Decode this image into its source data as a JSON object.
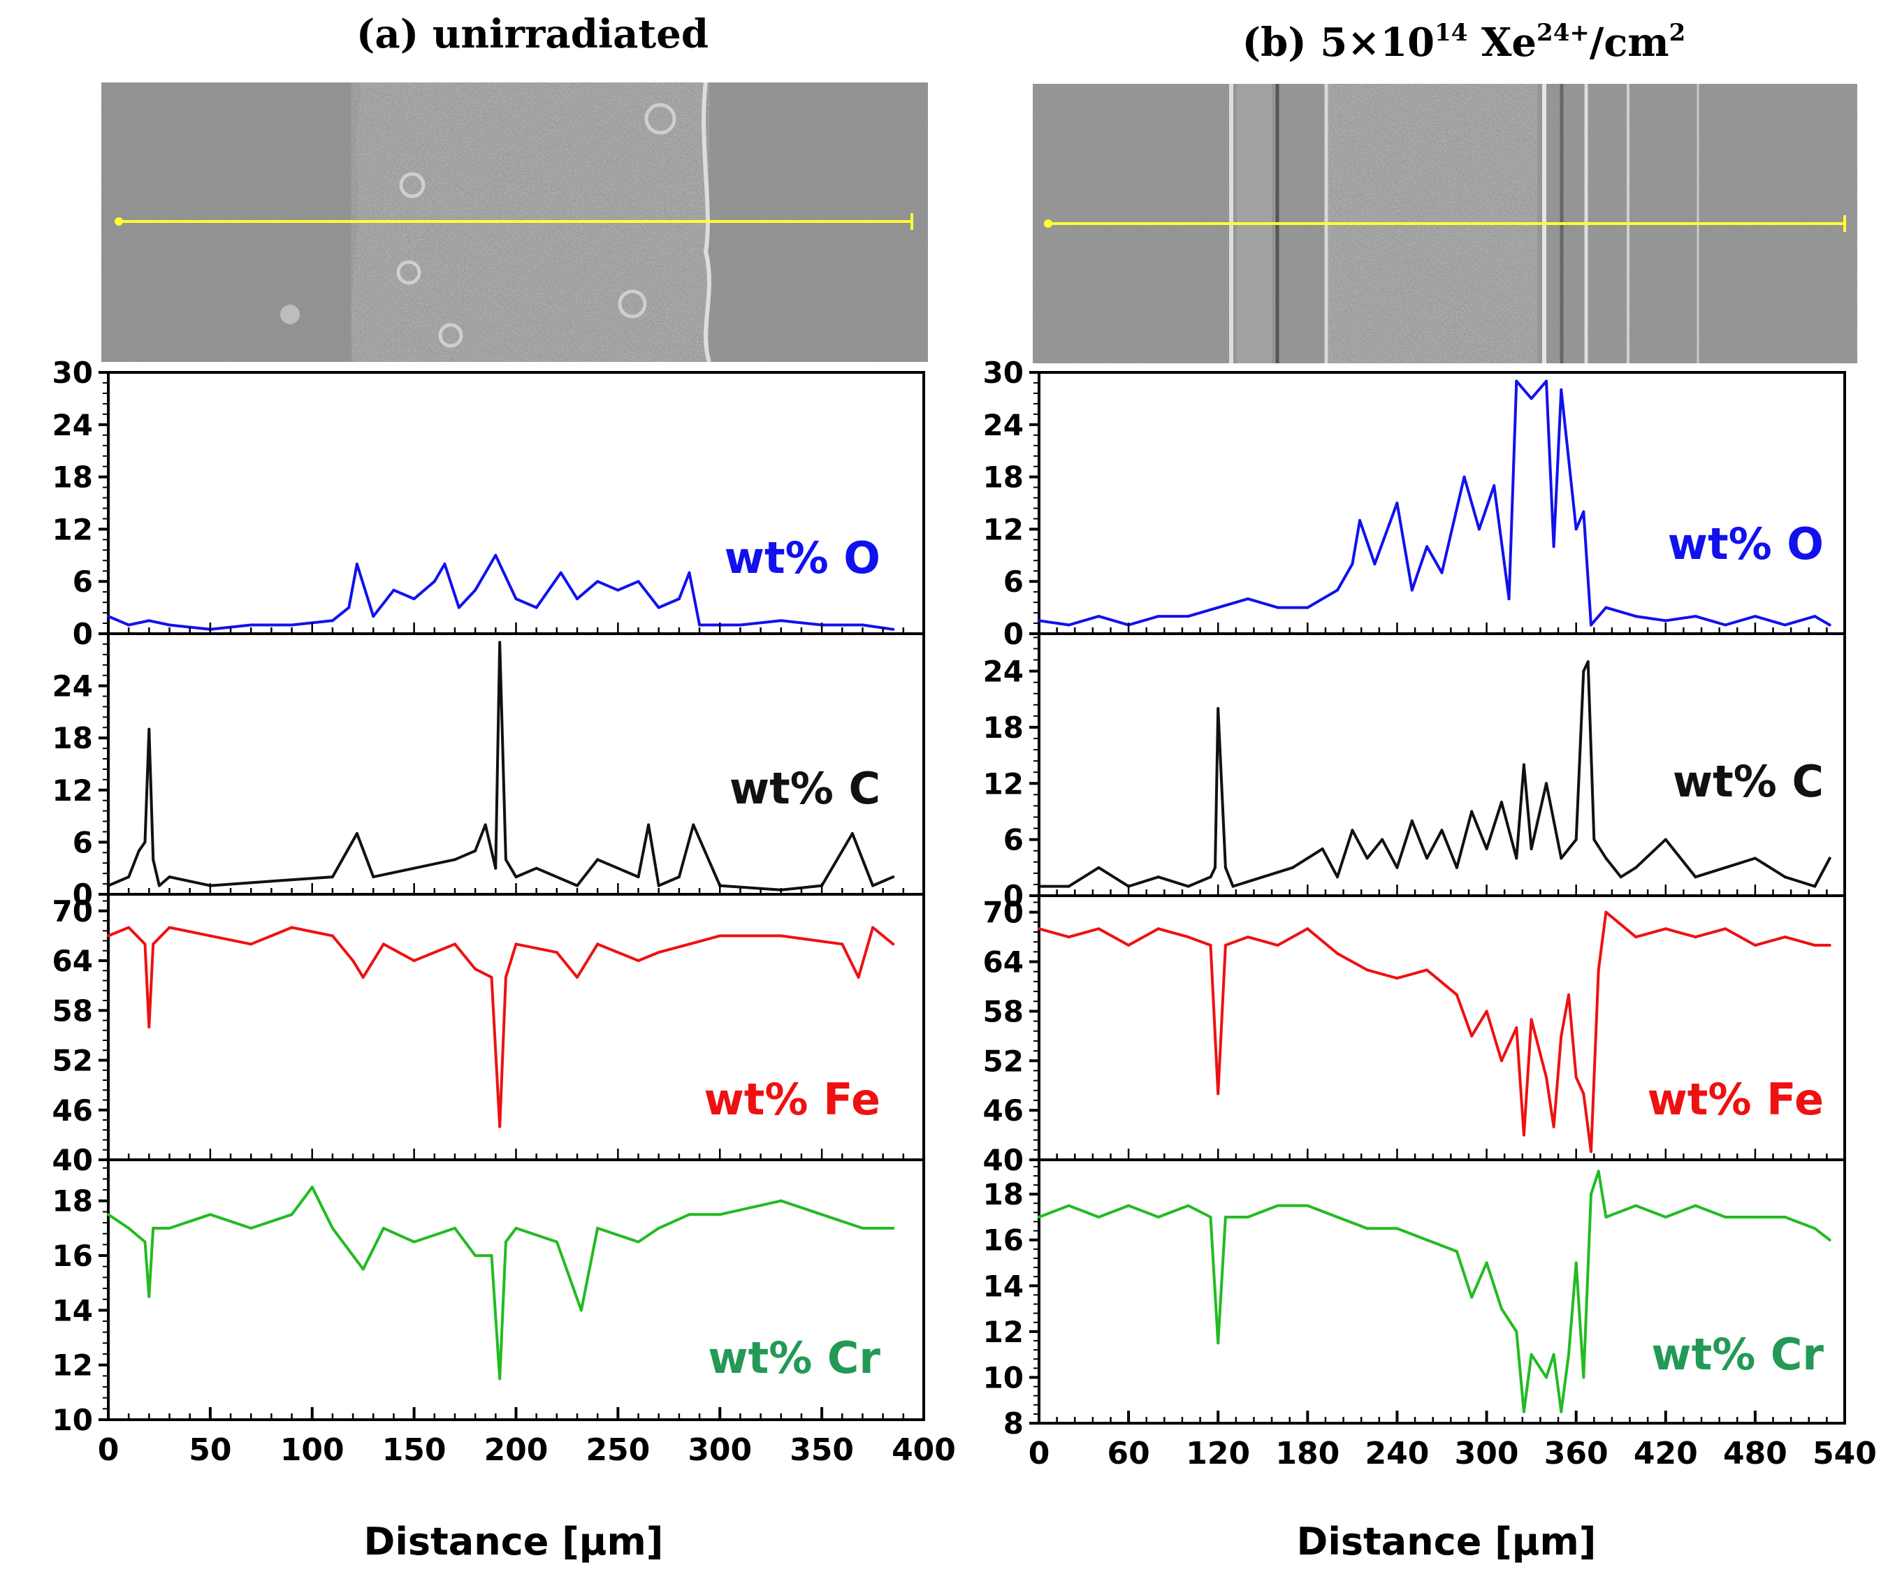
{
  "figure": {
    "panels": [
      {
        "id": "a",
        "title": "(a) unirradiated",
        "xlabel": "Distance  [µm]",
        "xticks": [
          "0",
          "50",
          "100",
          "150",
          "200",
          "250",
          "300",
          "350",
          "400"
        ],
        "xlim": [
          0,
          400
        ],
        "sem_caption": "SEM image with yellow scan line"
      },
      {
        "id": "b",
        "title_main": "(b) 5×10",
        "title_exp": "14",
        "title_ion": " Xe",
        "title_charge": "24+",
        "title_unit": "/cm",
        "title_unit_exp": "2",
        "xlabel": "Distance  [µm]",
        "xticks": [
          "0",
          "60",
          "120",
          "180",
          "240",
          "300",
          "360",
          "420",
          "480",
          "540"
        ],
        "xlim": [
          0,
          540
        ],
        "sem_caption": "SEM image with yellow scan line"
      }
    ]
  },
  "chart_data": [
    {
      "type": "line",
      "panel": "a",
      "title": "(a) unirradiated",
      "xlabel": "Distance  [µm]",
      "xlim": [
        0,
        400
      ],
      "series": [
        {
          "name": "wt% O",
          "color": "#1111ee",
          "ylim": [
            0,
            30
          ],
          "yticks": [
            "0",
            "6",
            "12",
            "18",
            "24",
            "30"
          ],
          "x": [
            0,
            10,
            20,
            30,
            50,
            70,
            90,
            110,
            118,
            122,
            130,
            140,
            150,
            160,
            165,
            172,
            180,
            190,
            200,
            210,
            222,
            230,
            240,
            250,
            260,
            270,
            280,
            285,
            290,
            310,
            330,
            350,
            370,
            385
          ],
          "y": [
            2,
            1,
            1.5,
            1,
            0.5,
            1,
            1,
            1.5,
            3,
            8,
            2,
            5,
            4,
            6,
            8,
            3,
            5,
            9,
            4,
            3,
            7,
            4,
            6,
            5,
            6,
            3,
            4,
            7,
            1,
            1,
            1.5,
            1,
            1,
            0.5
          ]
        },
        {
          "name": "wt% C",
          "color": "#111111",
          "ylim": [
            0,
            30
          ],
          "yticks": [
            "0",
            "6",
            "12",
            "18",
            "24"
          ],
          "x": [
            0,
            10,
            15,
            18,
            20,
            22,
            25,
            30,
            50,
            80,
            110,
            122,
            130,
            150,
            170,
            180,
            185,
            190,
            192,
            195,
            200,
            210,
            230,
            240,
            260,
            265,
            270,
            280,
            287,
            300,
            330,
            350,
            365,
            375,
            385
          ],
          "y": [
            1,
            2,
            5,
            6,
            19,
            4,
            1,
            2,
            1,
            1.5,
            2,
            7,
            2,
            3,
            4,
            5,
            8,
            3,
            29,
            4,
            2,
            3,
            1,
            4,
            2,
            8,
            1,
            2,
            8,
            1,
            0.5,
            1,
            7,
            1,
            2
          ]
        },
        {
          "name": "wt% Fe",
          "color": "#ee1111",
          "ylim": [
            40,
            72
          ],
          "yticks": [
            "40",
            "46",
            "52",
            "58",
            "64",
            "70"
          ],
          "x": [
            0,
            10,
            18,
            20,
            22,
            30,
            50,
            70,
            90,
            110,
            120,
            125,
            135,
            150,
            170,
            180,
            188,
            192,
            195,
            200,
            220,
            230,
            240,
            260,
            270,
            285,
            300,
            330,
            360,
            368,
            375,
            385
          ],
          "y": [
            67,
            68,
            66,
            56,
            66,
            68,
            67,
            66,
            68,
            67,
            64,
            62,
            66,
            64,
            66,
            63,
            62,
            44,
            62,
            66,
            65,
            62,
            66,
            64,
            65,
            66,
            67,
            67,
            66,
            62,
            68,
            66
          ]
        },
        {
          "name": "wt% Cr",
          "color": "#22bb22",
          "ylim": [
            10,
            19.5
          ],
          "yticks": [
            "10",
            "12",
            "14",
            "16",
            "18"
          ],
          "x": [
            0,
            10,
            18,
            20,
            22,
            30,
            50,
            70,
            90,
            100,
            110,
            125,
            135,
            150,
            170,
            180,
            188,
            192,
            195,
            200,
            220,
            232,
            240,
            260,
            270,
            285,
            300,
            330,
            350,
            370,
            385
          ],
          "y": [
            17.5,
            17,
            16.5,
            14.5,
            17,
            17,
            17.5,
            17,
            17.5,
            18.5,
            17,
            15.5,
            17,
            16.5,
            17,
            16,
            16,
            11.5,
            16.5,
            17,
            16.5,
            14,
            17,
            16.5,
            17,
            17.5,
            17.5,
            18,
            17.5,
            17,
            17
          ]
        }
      ]
    },
    {
      "type": "line",
      "panel": "b",
      "title": "(b) 5×10^14 Xe^24+/cm^2",
      "xlabel": "Distance  [µm]",
      "xlim": [
        0,
        540
      ],
      "series": [
        {
          "name": "wt% O",
          "color": "#1111ee",
          "ylim": [
            0,
            30
          ],
          "yticks": [
            "0",
            "6",
            "12",
            "18",
            "24",
            "30"
          ],
          "x": [
            0,
            20,
            40,
            60,
            80,
            100,
            120,
            140,
            160,
            180,
            200,
            210,
            215,
            225,
            240,
            250,
            260,
            270,
            285,
            295,
            305,
            315,
            320,
            330,
            340,
            345,
            350,
            360,
            365,
            370,
            380,
            400,
            420,
            440,
            460,
            480,
            500,
            520,
            530
          ],
          "y": [
            1.5,
            1,
            2,
            1,
            2,
            2,
            3,
            4,
            3,
            3,
            5,
            8,
            13,
            8,
            15,
            5,
            10,
            7,
            18,
            12,
            17,
            4,
            29,
            27,
            29,
            10,
            28,
            12,
            14,
            1,
            3,
            2,
            1.5,
            2,
            1,
            2,
            1,
            2,
            1
          ]
        },
        {
          "name": "wt% C",
          "color": "#111111",
          "ylim": [
            0,
            28
          ],
          "yticks": [
            "0",
            "6",
            "12",
            "18",
            "24"
          ],
          "x": [
            0,
            20,
            40,
            60,
            80,
            100,
            115,
            118,
            120,
            125,
            130,
            150,
            170,
            190,
            200,
            210,
            220,
            230,
            240,
            250,
            260,
            270,
            280,
            290,
            300,
            310,
            320,
            325,
            330,
            340,
            350,
            360,
            365,
            368,
            372,
            380,
            390,
            400,
            420,
            440,
            460,
            480,
            500,
            520,
            530
          ],
          "y": [
            1,
            1,
            3,
            1,
            2,
            1,
            2,
            3,
            20,
            3,
            1,
            2,
            3,
            5,
            2,
            7,
            4,
            6,
            3,
            8,
            4,
            7,
            3,
            9,
            5,
            10,
            4,
            14,
            5,
            12,
            4,
            6,
            24,
            25,
            6,
            4,
            2,
            3,
            6,
            2,
            3,
            4,
            2,
            1,
            4
          ]
        },
        {
          "name": "wt% Fe",
          "color": "#ee1111",
          "ylim": [
            40,
            72
          ],
          "yticks": [
            "40",
            "46",
            "52",
            "58",
            "64",
            "70"
          ],
          "x": [
            0,
            20,
            40,
            60,
            80,
            100,
            115,
            120,
            125,
            140,
            160,
            180,
            200,
            220,
            240,
            260,
            280,
            290,
            300,
            310,
            320,
            325,
            330,
            340,
            345,
            350,
            355,
            360,
            365,
            370,
            375,
            380,
            400,
            420,
            440,
            460,
            480,
            500,
            520,
            530
          ],
          "y": [
            68,
            67,
            68,
            66,
            68,
            67,
            66,
            48,
            66,
            67,
            66,
            68,
            65,
            63,
            62,
            63,
            60,
            55,
            58,
            52,
            56,
            43,
            57,
            50,
            44,
            55,
            60,
            50,
            48,
            41,
            63,
            70,
            67,
            68,
            67,
            68,
            66,
            67,
            66,
            66
          ]
        },
        {
          "name": "wt% Cr",
          "color": "#22bb22",
          "ylim": [
            8,
            19.5
          ],
          "yticks": [
            "8",
            "10",
            "12",
            "14",
            "16",
            "18"
          ],
          "x": [
            0,
            20,
            40,
            60,
            80,
            100,
            115,
            120,
            125,
            140,
            160,
            180,
            200,
            220,
            240,
            260,
            280,
            290,
            300,
            310,
            320,
            325,
            330,
            340,
            345,
            350,
            355,
            360,
            365,
            370,
            375,
            380,
            400,
            420,
            440,
            460,
            480,
            500,
            520,
            530
          ],
          "y": [
            17,
            17.5,
            17,
            17.5,
            17,
            17.5,
            17,
            11.5,
            17,
            17,
            17.5,
            17.5,
            17,
            16.5,
            16.5,
            16,
            15.5,
            13.5,
            15,
            13,
            12,
            8.5,
            11,
            10,
            11,
            8.5,
            11,
            15,
            10,
            18,
            19,
            17,
            17.5,
            17,
            17.5,
            17,
            17,
            17,
            16.5,
            16
          ]
        }
      ]
    }
  ]
}
